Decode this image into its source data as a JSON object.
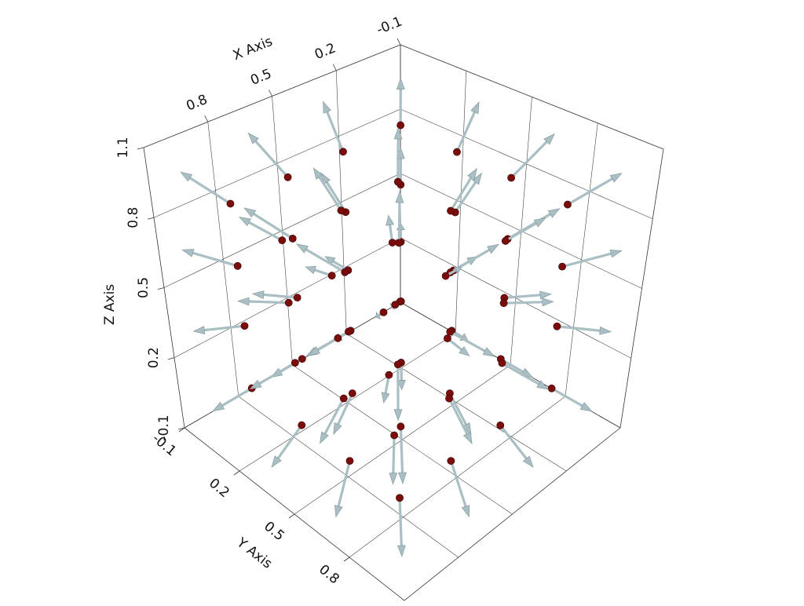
{
  "chart_data": {
    "type": "quiver3d",
    "x_label": "X Axis",
    "y_label": "Y Axis",
    "z_label": "Z Axis",
    "xlim": [
      -0.1,
      1.1
    ],
    "ylim": [
      -0.1,
      1.1
    ],
    "zlim": [
      -0.1,
      1.1
    ],
    "xticks": [
      -0.1,
      0.2,
      0.5,
      0.8
    ],
    "yticks": [
      -0.1,
      0.2,
      0.5,
      0.8
    ],
    "zticks": [
      -0.1,
      0.2,
      0.5,
      0.8,
      1.1
    ],
    "grid": true,
    "point_color": "#7a0c0c",
    "arrow_color": "#a9bfc3",
    "points": [
      [
        0.1,
        0.1,
        0.1,
        -0.115,
        -0.115,
        -0.115
      ],
      [
        0.1,
        0.1,
        0.37,
        -0.138,
        -0.138,
        -0.045
      ],
      [
        0.1,
        0.1,
        0.63,
        -0.138,
        -0.138,
        0.045
      ],
      [
        0.1,
        0.1,
        0.9,
        -0.115,
        -0.115,
        0.115
      ],
      [
        0.1,
        0.37,
        0.1,
        -0.138,
        -0.045,
        -0.138
      ],
      [
        0.1,
        0.37,
        0.37,
        -0.182,
        -0.059,
        -0.059
      ],
      [
        0.1,
        0.37,
        0.63,
        -0.182,
        -0.059,
        0.059
      ],
      [
        0.1,
        0.37,
        0.9,
        -0.138,
        -0.045,
        0.138
      ],
      [
        0.1,
        0.63,
        0.1,
        -0.138,
        0.045,
        -0.138
      ],
      [
        0.1,
        0.63,
        0.37,
        -0.182,
        0.059,
        -0.059
      ],
      [
        0.1,
        0.63,
        0.63,
        -0.182,
        0.059,
        0.059
      ],
      [
        0.1,
        0.63,
        0.9,
        -0.138,
        0.045,
        0.138
      ],
      [
        0.1,
        0.9,
        0.1,
        -0.115,
        0.115,
        -0.115
      ],
      [
        0.1,
        0.9,
        0.37,
        -0.138,
        0.138,
        -0.045
      ],
      [
        0.1,
        0.9,
        0.63,
        -0.138,
        0.138,
        0.045
      ],
      [
        0.1,
        0.9,
        0.9,
        -0.115,
        0.115,
        0.115
      ],
      [
        0.37,
        0.1,
        0.1,
        -0.045,
        -0.138,
        -0.138
      ],
      [
        0.37,
        0.1,
        0.37,
        -0.059,
        -0.182,
        -0.059
      ],
      [
        0.37,
        0.1,
        0.63,
        -0.059,
        -0.182,
        0.059
      ],
      [
        0.37,
        0.1,
        0.9,
        -0.045,
        -0.138,
        0.138
      ],
      [
        0.37,
        0.37,
        0.1,
        -0.059,
        -0.059,
        -0.182
      ],
      [
        0.37,
        0.37,
        0.37,
        -0.115,
        -0.115,
        -0.115
      ],
      [
        0.37,
        0.37,
        0.63,
        -0.115,
        -0.115,
        0.115
      ],
      [
        0.37,
        0.37,
        0.9,
        -0.059,
        -0.059,
        0.182
      ],
      [
        0.37,
        0.63,
        0.1,
        -0.059,
        0.059,
        -0.182
      ],
      [
        0.37,
        0.63,
        0.37,
        -0.115,
        0.115,
        -0.115
      ],
      [
        0.37,
        0.63,
        0.63,
        -0.115,
        0.115,
        0.115
      ],
      [
        0.37,
        0.63,
        0.9,
        -0.059,
        0.059,
        0.182
      ],
      [
        0.37,
        0.9,
        0.1,
        -0.045,
        0.138,
        -0.138
      ],
      [
        0.37,
        0.9,
        0.37,
        -0.059,
        0.182,
        -0.059
      ],
      [
        0.37,
        0.9,
        0.63,
        -0.059,
        0.182,
        0.059
      ],
      [
        0.37,
        0.9,
        0.9,
        -0.045,
        0.138,
        0.138
      ],
      [
        0.63,
        0.1,
        0.1,
        0.045,
        -0.138,
        -0.138
      ],
      [
        0.63,
        0.1,
        0.37,
        0.059,
        -0.182,
        -0.059
      ],
      [
        0.63,
        0.1,
        0.63,
        0.059,
        -0.182,
        0.059
      ],
      [
        0.63,
        0.1,
        0.9,
        0.045,
        -0.138,
        0.138
      ],
      [
        0.63,
        0.37,
        0.1,
        0.059,
        -0.059,
        -0.182
      ],
      [
        0.63,
        0.37,
        0.37,
        0.115,
        -0.115,
        -0.115
      ],
      [
        0.63,
        0.37,
        0.63,
        0.115,
        -0.115,
        0.115
      ],
      [
        0.63,
        0.37,
        0.9,
        0.059,
        -0.059,
        0.182
      ],
      [
        0.63,
        0.63,
        0.1,
        0.059,
        0.059,
        -0.182
      ],
      [
        0.63,
        0.63,
        0.37,
        0.115,
        0.115,
        -0.115
      ],
      [
        0.63,
        0.63,
        0.63,
        0.115,
        0.115,
        0.115
      ],
      [
        0.63,
        0.63,
        0.9,
        0.059,
        0.059,
        0.182
      ],
      [
        0.63,
        0.9,
        0.1,
        0.045,
        0.138,
        -0.138
      ],
      [
        0.63,
        0.9,
        0.37,
        0.059,
        0.182,
        -0.059
      ],
      [
        0.63,
        0.9,
        0.63,
        0.059,
        0.182,
        0.059
      ],
      [
        0.63,
        0.9,
        0.9,
        0.045,
        0.138,
        0.138
      ],
      [
        0.9,
        0.1,
        0.1,
        0.115,
        -0.115,
        -0.115
      ],
      [
        0.9,
        0.1,
        0.37,
        0.138,
        -0.138,
        -0.045
      ],
      [
        0.9,
        0.1,
        0.63,
        0.138,
        -0.138,
        0.045
      ],
      [
        0.9,
        0.1,
        0.9,
        0.115,
        -0.115,
        0.115
      ],
      [
        0.9,
        0.37,
        0.1,
        0.138,
        -0.045,
        -0.138
      ],
      [
        0.9,
        0.37,
        0.37,
        0.182,
        -0.059,
        -0.059
      ],
      [
        0.9,
        0.37,
        0.63,
        0.182,
        -0.059,
        0.059
      ],
      [
        0.9,
        0.37,
        0.9,
        0.138,
        -0.045,
        0.138
      ],
      [
        0.9,
        0.63,
        0.1,
        0.138,
        0.045,
        -0.138
      ],
      [
        0.9,
        0.63,
        0.37,
        0.182,
        0.059,
        -0.059
      ],
      [
        0.9,
        0.63,
        0.63,
        0.182,
        0.059,
        0.059
      ],
      [
        0.9,
        0.63,
        0.9,
        0.138,
        0.045,
        0.138
      ],
      [
        0.9,
        0.9,
        0.1,
        0.115,
        0.115,
        -0.115
      ],
      [
        0.9,
        0.9,
        0.37,
        0.138,
        0.138,
        -0.045
      ],
      [
        0.9,
        0.9,
        0.63,
        0.138,
        0.138,
        0.045
      ],
      [
        0.9,
        0.9,
        0.9,
        0.115,
        0.115,
        0.115
      ]
    ]
  }
}
